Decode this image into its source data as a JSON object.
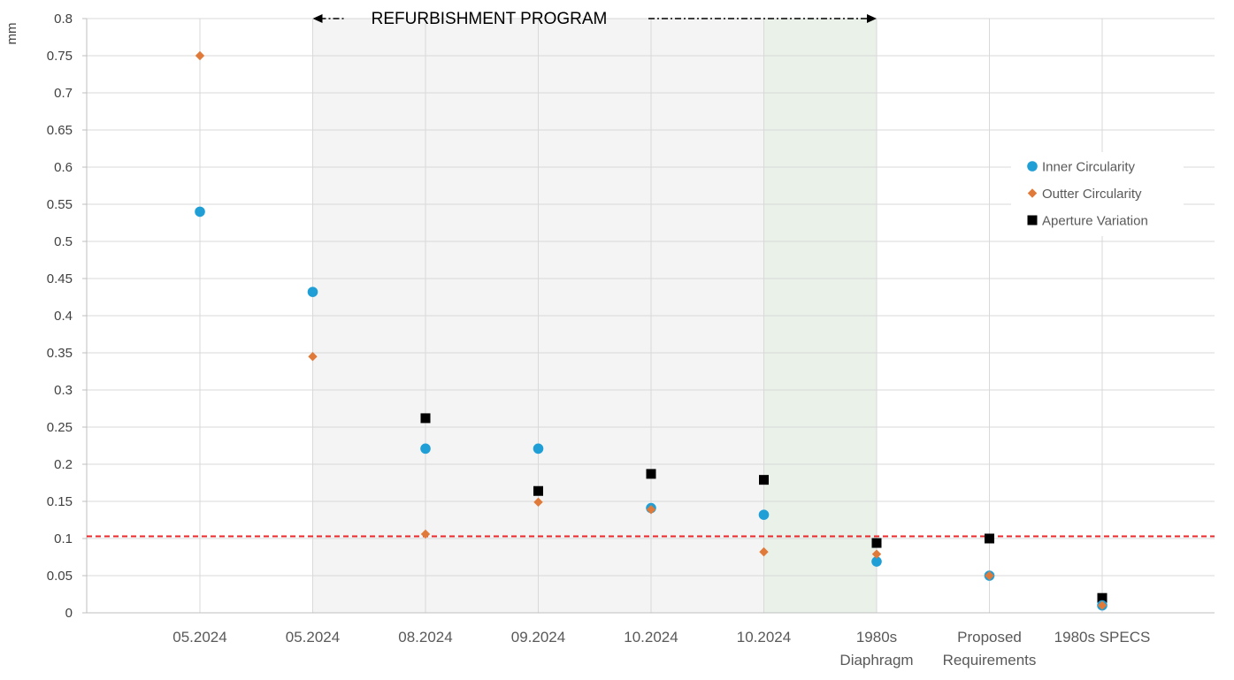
{
  "chart_data": {
    "type": "scatter",
    "ylabel": "mm",
    "ylim": [
      0,
      0.8
    ],
    "y_ticks": [
      "0",
      "0.05",
      "0.1",
      "0.15",
      "0.2",
      "0.25",
      "0.3",
      "0.35",
      "0.4",
      "0.45",
      "0.5",
      "0.55",
      "0.6",
      "0.65",
      "0.7",
      "0.75",
      "0.8"
    ],
    "categories": [
      [
        "05.2024"
      ],
      [
        "05.2024"
      ],
      [
        "08.2024"
      ],
      [
        "09.2024"
      ],
      [
        "10.2024"
      ],
      [
        "10.2024"
      ],
      [
        "1980s",
        "Diaphragm"
      ],
      [
        "Proposed",
        "Requirements"
      ],
      [
        "1980s SPECS"
      ]
    ],
    "series": [
      {
        "name": "Inner Circularity",
        "color": "#1f9fd6",
        "marker": "circle",
        "values": [
          0.54,
          0.432,
          0.221,
          0.221,
          0.141,
          0.132,
          0.069,
          0.05,
          0.01
        ]
      },
      {
        "name": "Outter Circularity",
        "color": "#e07a3a",
        "marker": "diamond",
        "values": [
          0.75,
          0.345,
          0.106,
          0.149,
          0.139,
          0.082,
          0.079,
          0.05,
          0.01
        ]
      },
      {
        "name": "Aperture Variation",
        "color": "#000000",
        "marker": "square",
        "values": [
          null,
          null,
          0.262,
          0.164,
          0.187,
          0.179,
          0.094,
          0.1,
          0.02
        ]
      }
    ],
    "reference_line": {
      "value": 0.103,
      "color": "#e8282b",
      "style": "dashed"
    },
    "annotation": "REFURBISHMENT PROGRAM",
    "shaded_regions": [
      {
        "from_category": 1,
        "to_category": 5,
        "color": "#f4f4f4"
      },
      {
        "from_category": 5,
        "to_category": 6,
        "color": "#e9f1e9"
      }
    ],
    "grid": true,
    "legend_position": "right"
  }
}
